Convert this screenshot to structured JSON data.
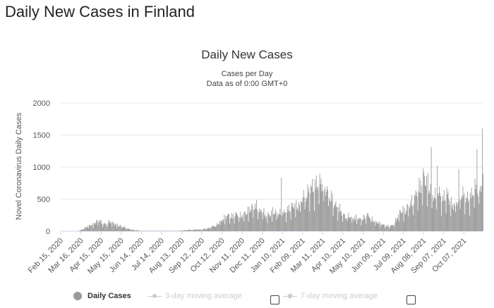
{
  "page": {
    "title": "Daily New Cases in Finland"
  },
  "chart_data": {
    "type": "bar",
    "title": "Daily New Cases",
    "subtitle_lines": [
      "Cases per Day",
      "Data as of 0:00 GMT+0"
    ],
    "ylabel": "Novel Coronavirus Daily Cases",
    "xlabel": "",
    "ylim": [
      0,
      2000
    ],
    "yticks": [
      0,
      500,
      1000,
      1500,
      2000
    ],
    "grid": true,
    "legend_placement": "bottom",
    "x_range_days": [
      0,
      616
    ],
    "xticks": [
      {
        "label": "Feb 15, 2020",
        "day": 0
      },
      {
        "label": "Mar 16, 2020",
        "day": 30
      },
      {
        "label": "Apr 15, 2020",
        "day": 60
      },
      {
        "label": "May 15, 2020",
        "day": 90
      },
      {
        "label": "Jun 14, 2020",
        "day": 120
      },
      {
        "label": "Jul 14, 2020",
        "day": 150
      },
      {
        "label": "Aug 13, 2020",
        "day": 180
      },
      {
        "label": "Sep 12, 2020",
        "day": 210
      },
      {
        "label": "Oct 12, 2020",
        "day": 240
      },
      {
        "label": "Nov 11, 2020",
        "day": 270
      },
      {
        "label": "Dec 11, 2020",
        "day": 300
      },
      {
        "label": "Jan 10, 2021",
        "day": 330
      },
      {
        "label": "Feb 09, 2021",
        "day": 360
      },
      {
        "label": "Mar 11, 2021",
        "day": 390
      },
      {
        "label": "Apr 10, 2021",
        "day": 420
      },
      {
        "label": "May 10, 2021",
        "day": 450
      },
      {
        "label": "Jun 09, 2021",
        "day": 480
      },
      {
        "label": "Jul 09, 2021",
        "day": 510
      },
      {
        "label": "Aug 08, 2021",
        "day": 540
      },
      {
        "label": "Sep 07, 2021",
        "day": 570
      },
      {
        "label": "Oct 07, 2021",
        "day": 600
      }
    ],
    "series": [
      {
        "name": "Daily Cases",
        "color": "#999999",
        "x_start_day": 0,
        "x_step_days": 4,
        "values": [
          0,
          0,
          0,
          0,
          0,
          0,
          0,
          10,
          30,
          60,
          80,
          100,
          110,
          150,
          180,
          150,
          120,
          110,
          160,
          140,
          120,
          100,
          90,
          70,
          60,
          40,
          30,
          20,
          15,
          10,
          5,
          5,
          5,
          5,
          5,
          5,
          5,
          5,
          5,
          5,
          5,
          5,
          5,
          5,
          5,
          10,
          15,
          20,
          25,
          20,
          30,
          30,
          25,
          35,
          40,
          50,
          70,
          90,
          110,
          150,
          180,
          230,
          250,
          250,
          240,
          270,
          260,
          250,
          280,
          300,
          350,
          380,
          400,
          420,
          300,
          360,
          250,
          260,
          280,
          340,
          300,
          280,
          310,
          290,
          330,
          380,
          400,
          430,
          400,
          470,
          560,
          580,
          640,
          700,
          720,
          760,
          780,
          800,
          700,
          670,
          600,
          520,
          420,
          380,
          350,
          260,
          240,
          260,
          220,
          210,
          230,
          190,
          200,
          230,
          260,
          240,
          180,
          150,
          140,
          120,
          100,
          90,
          80,
          90,
          120,
          220,
          300,
          350,
          320,
          400,
          450,
          500,
          580,
          700,
          750,
          900,
          800,
          750,
          600,
          560,
          620,
          600,
          500,
          620,
          580,
          460,
          420,
          470,
          500,
          650,
          560,
          520,
          550,
          600,
          720,
          650,
          690,
          900,
          720
        ]
      },
      {
        "name": "3-day moving average",
        "visible": false
      },
      {
        "name": "7-day moving average",
        "visible": false
      }
    ],
    "spikes": [
      {
        "day": 328,
        "value": 830
      },
      {
        "day": 551,
        "value": 1310
      },
      {
        "day": 560,
        "value": 1020
      },
      {
        "day": 592,
        "value": 970
      },
      {
        "day": 619,
        "value": 1280
      },
      {
        "day": 627,
        "value": 1600
      }
    ]
  },
  "legend": {
    "items": [
      {
        "label": "Daily Cases"
      },
      {
        "label": "3-day moving average"
      },
      {
        "label": "7-day moving average"
      }
    ]
  },
  "colors": {
    "bars": "#999999",
    "grid": "#e6e6e6",
    "legend_active": "#999999",
    "legend_inactive": "#cccccc"
  }
}
